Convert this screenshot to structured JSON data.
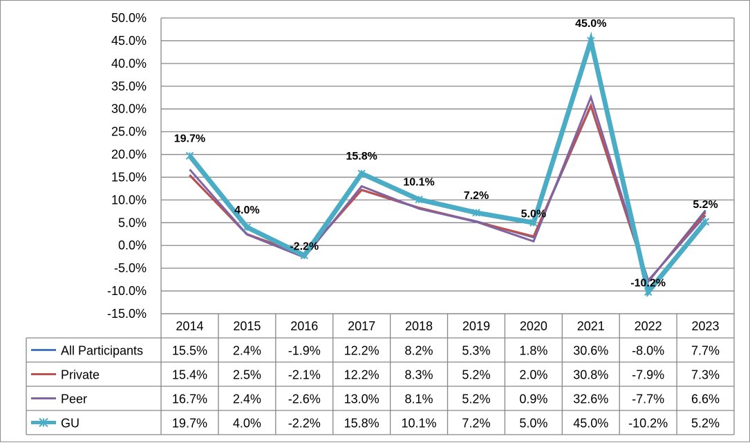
{
  "chart_data": {
    "type": "line",
    "title": "",
    "xlabel": "",
    "ylabel": "",
    "ylim": [
      -15.0,
      50.0
    ],
    "ytick_step": 5.0,
    "grid": true,
    "legend": "data-table",
    "categories": [
      "2014",
      "2015",
      "2016",
      "2017",
      "2018",
      "2019",
      "2020",
      "2021",
      "2022",
      "2023"
    ],
    "series": [
      {
        "name": "All Participants",
        "color": "#4472C4",
        "marker": "none",
        "values": [
          15.5,
          2.4,
          -1.9,
          12.2,
          8.2,
          5.3,
          1.8,
          30.6,
          -8.0,
          7.7
        ],
        "labels": [
          "15.5%",
          "2.4%",
          "-1.9%",
          "12.2%",
          "8.2%",
          "5.3%",
          "1.8%",
          "30.6%",
          "-8.0%",
          "7.7%"
        ]
      },
      {
        "name": "Private",
        "color": "#C0504D",
        "marker": "none",
        "values": [
          15.4,
          2.5,
          -2.1,
          12.2,
          8.3,
          5.2,
          2.0,
          30.8,
          -7.9,
          7.3
        ],
        "labels": [
          "15.4%",
          "2.5%",
          "-2.1%",
          "12.2%",
          "8.3%",
          "5.2%",
          "2.0%",
          "30.8%",
          "-7.9%",
          "7.3%"
        ]
      },
      {
        "name": "Peer",
        "color": "#8064A2",
        "marker": "none",
        "values": [
          16.7,
          2.4,
          -2.6,
          13.0,
          8.1,
          5.2,
          0.9,
          32.6,
          -7.7,
          6.6
        ],
        "labels": [
          "16.7%",
          "2.4%",
          "-2.6%",
          "13.0%",
          "8.1%",
          "5.2%",
          "0.9%",
          "32.6%",
          "-7.7%",
          "6.6%"
        ]
      },
      {
        "name": "GU",
        "color": "#4BACC6",
        "marker": "star",
        "values": [
          19.7,
          4.0,
          -2.2,
          15.8,
          10.1,
          7.2,
          5.0,
          45.0,
          -10.2,
          5.2
        ],
        "labels": [
          "19.7%",
          "4.0%",
          "-2.2%",
          "15.8%",
          "10.1%",
          "7.2%",
          "5.0%",
          "45.0%",
          "-10.2%",
          "5.2%"
        ],
        "data_labels": true
      }
    ]
  }
}
